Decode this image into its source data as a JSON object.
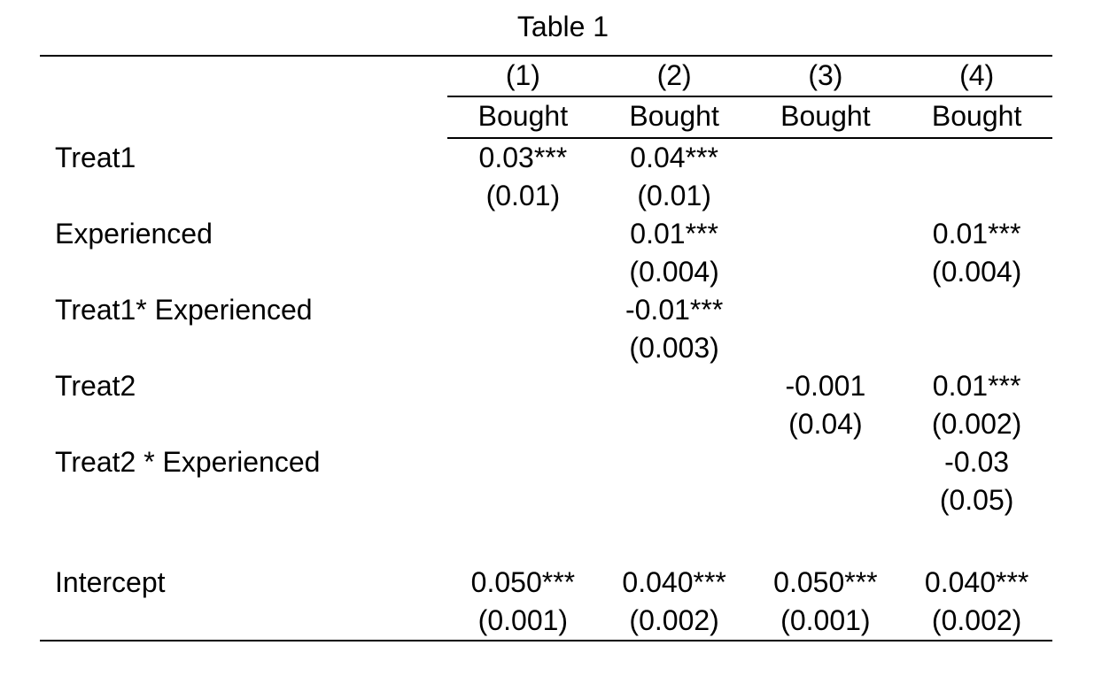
{
  "table": {
    "title": "Table 1",
    "columns": [
      {
        "number": "(1)",
        "dep_var": "Bought"
      },
      {
        "number": "(2)",
        "dep_var": "Bought"
      },
      {
        "number": "(3)",
        "dep_var": "Bought"
      },
      {
        "number": "(4)",
        "dep_var": "Bought"
      }
    ],
    "rows": [
      {
        "label": "Treat1",
        "cells": [
          {
            "coef": "0.03***",
            "se": "(0.01)"
          },
          {
            "coef": "0.04***",
            "se": "(0.01)"
          },
          {
            "coef": "",
            "se": ""
          },
          {
            "coef": "",
            "se": ""
          }
        ]
      },
      {
        "label": "Experienced",
        "cells": [
          {
            "coef": "",
            "se": ""
          },
          {
            "coef": "0.01***",
            "se": "(0.004)"
          },
          {
            "coef": "",
            "se": ""
          },
          {
            "coef": "0.01***",
            "se": "(0.004)"
          }
        ]
      },
      {
        "label": "Treat1* Experienced",
        "cells": [
          {
            "coef": "",
            "se": ""
          },
          {
            "coef": "-0.01***",
            "se": "(0.003)"
          },
          {
            "coef": "",
            "se": ""
          },
          {
            "coef": "",
            "se": ""
          }
        ]
      },
      {
        "label": "Treat2",
        "cells": [
          {
            "coef": "",
            "se": ""
          },
          {
            "coef": "",
            "se": ""
          },
          {
            "coef": "-0.001",
            "se": "(0.04)"
          },
          {
            "coef": "0.01***",
            "se": "(0.002)"
          }
        ]
      },
      {
        "label": "Treat2 * Experienced",
        "cells": [
          {
            "coef": "",
            "se": ""
          },
          {
            "coef": "",
            "se": ""
          },
          {
            "coef": "",
            "se": ""
          },
          {
            "coef": "-0.03",
            "se": "(0.05)"
          }
        ]
      },
      {
        "label": "Intercept",
        "cells": [
          {
            "coef": "0.050***",
            "se": "(0.001)"
          },
          {
            "coef": "0.040***",
            "se": "(0.002)"
          },
          {
            "coef": "0.050***",
            "se": "(0.001)"
          },
          {
            "coef": "0.040***",
            "se": "(0.002)"
          }
        ]
      }
    ]
  }
}
